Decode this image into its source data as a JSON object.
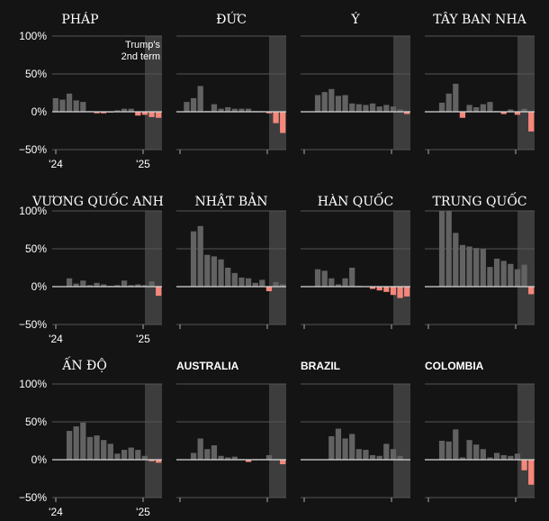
{
  "chart_data": {
    "type": "bar",
    "title": "",
    "ylim": [
      -50,
      100
    ],
    "y_ticks": [
      "100%",
      "50%",
      "0%",
      "−50%"
    ],
    "x_ticks": [
      "'24",
      "'25"
    ],
    "highlight_label_line1": "Trump's",
    "highlight_label_line2": "2nd term",
    "colors": {
      "positive": "#626262",
      "negative": "#f5877b",
      "highlight": "#3d3d3d",
      "grid": "#555555",
      "zero": "#d8d8d8",
      "background": "#141414"
    },
    "panels": [
      {
        "name": "PHÁP",
        "values": [
          18,
          16,
          24,
          15,
          13,
          1,
          -2,
          -2,
          -1,
          2,
          4,
          4,
          -5,
          -4,
          -7,
          -8
        ]
      },
      {
        "name": "ĐỨC",
        "values": [
          13,
          18,
          34,
          1,
          10,
          4,
          6,
          4,
          4,
          4,
          1,
          1,
          -2,
          -15,
          -28
        ]
      },
      {
        "name": "Ý",
        "values": [
          22,
          26,
          30,
          21,
          22,
          11,
          10,
          9,
          11,
          7,
          9,
          7,
          3,
          -3
        ]
      },
      {
        "name": "TÂY BAN NHA",
        "values": [
          12,
          24,
          37,
          -8,
          9,
          6,
          10,
          13,
          1,
          -3,
          3,
          -4,
          4,
          -26
        ]
      },
      {
        "name": "VƯƠNG QUỐC ANH",
        "values": [
          11,
          4,
          8,
          2,
          5,
          3,
          1,
          2,
          8,
          2,
          3,
          2,
          7,
          -12
        ]
      },
      {
        "name": "NHẬT BẢN",
        "values": [
          73,
          80,
          42,
          40,
          36,
          25,
          18,
          12,
          11,
          5,
          9,
          -6,
          6,
          3
        ]
      },
      {
        "name": "HÀN QUỐC",
        "values": [
          23,
          21,
          11,
          3,
          11,
          25,
          1,
          0,
          -3,
          -5,
          -7,
          -11,
          -15,
          -13
        ]
      },
      {
        "name": "TRUNG QUỐC",
        "values": [
          100,
          100,
          71,
          55,
          53,
          51,
          50,
          26,
          37,
          34,
          30,
          23,
          29,
          -10
        ]
      },
      {
        "name": "ẤN ĐỘ",
        "values": [
          38,
          44,
          49,
          30,
          32,
          26,
          21,
          8,
          13,
          16,
          13,
          5,
          -2,
          -4
        ]
      },
      {
        "name": "AUSTRALIA",
        "values": [
          9,
          28,
          14,
          19,
          5,
          3,
          4,
          1,
          -3,
          1,
          1,
          6,
          1,
          -6
        ]
      },
      {
        "name": "BRAZIL",
        "values": [
          31,
          41,
          28,
          34,
          14,
          13,
          6,
          5,
          21,
          14,
          5,
          0
        ]
      },
      {
        "name": "COLOMBIA",
        "values": [
          25,
          24,
          40,
          3,
          26,
          20,
          14,
          3,
          9,
          6,
          5,
          8,
          -14,
          -33
        ]
      }
    ]
  }
}
